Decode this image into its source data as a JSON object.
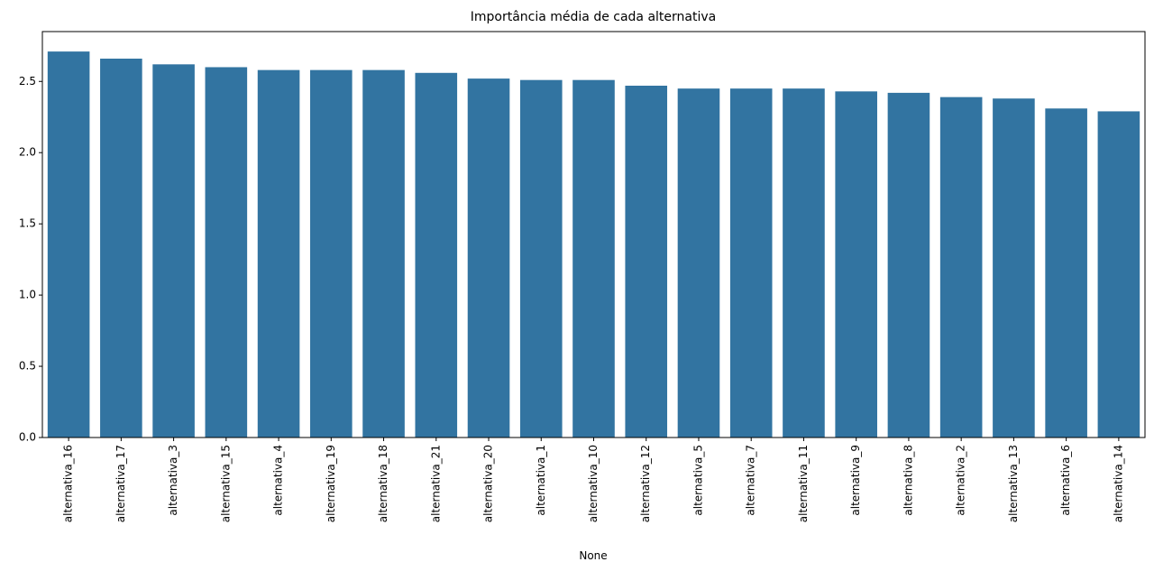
{
  "chart_data": {
    "type": "bar",
    "title": "Importância média de cada alternativa",
    "xlabel": "None",
    "ylabel": "",
    "ylim": [
      0,
      2.85
    ],
    "yticks": [
      "0.0",
      "0.5",
      "1.0",
      "1.5",
      "2.0",
      "2.5"
    ],
    "ytick_values": [
      0.0,
      0.5,
      1.0,
      1.5,
      2.0,
      2.5
    ],
    "grid": false,
    "legend": "none",
    "bar_color": "#3274a1",
    "categories": [
      "alternativa_16",
      "alternativa_17",
      "alternativa_3",
      "alternativa_15",
      "alternativa_4",
      "alternativa_19",
      "alternativa_18",
      "alternativa_21",
      "alternativa_20",
      "alternativa_1",
      "alternativa_10",
      "alternativa_12",
      "alternativa_5",
      "alternativa_7",
      "alternativa_11",
      "alternativa_9",
      "alternativa_8",
      "alternativa_2",
      "alternativa_13",
      "alternativa_6",
      "alternativa_14"
    ],
    "values": [
      2.71,
      2.66,
      2.62,
      2.6,
      2.58,
      2.58,
      2.58,
      2.56,
      2.52,
      2.51,
      2.51,
      2.47,
      2.45,
      2.45,
      2.45,
      2.43,
      2.42,
      2.39,
      2.38,
      2.31,
      2.29
    ]
  }
}
